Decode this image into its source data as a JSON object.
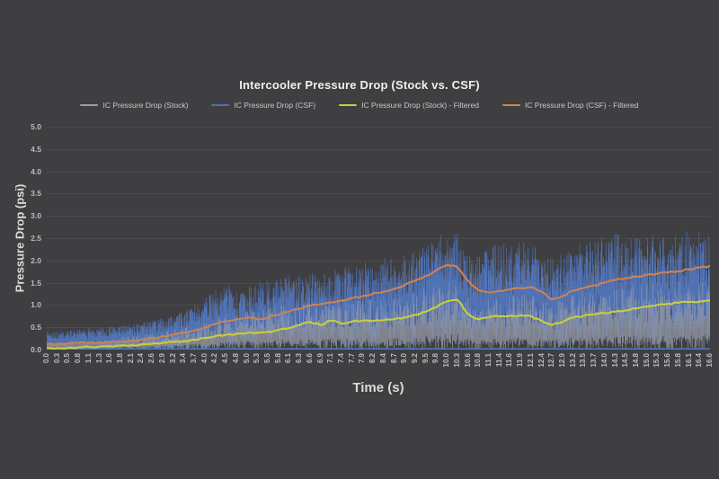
{
  "theme": {
    "background": "#3f3f41",
    "gridline": "#4c4d50",
    "axis_line": "#4a78c8",
    "tick_text": "#bbbcbe",
    "title_text": "#efefef",
    "axis_title_text": "#dcdcdc",
    "legend_text": "#c7c8ca"
  },
  "chart_data": {
    "type": "line",
    "title": "Intercooler Pressure Drop (Stock vs. CSF)",
    "xlabel": "Time (s)",
    "ylabel": "Pressure Drop (psi)",
    "ylim": [
      0,
      5
    ],
    "y_tick_step": 0.5,
    "grid": "horizontal",
    "legend_position": "top",
    "x_tick_rotation": 90,
    "noise_seed": 7,
    "y_ticks": [
      "0.0",
      "0.5",
      "1.0",
      "1.5",
      "2.0",
      "2.5",
      "3.0",
      "3.5",
      "4.0",
      "4.5",
      "5.0"
    ],
    "categories": [
      "0.0",
      "0.3",
      "0.5",
      "0.8",
      "1.1",
      "1.3",
      "1.6",
      "1.8",
      "2.1",
      "2.4",
      "2.6",
      "2.9",
      "3.2",
      "3.4",
      "3.7",
      "4.0",
      "4.2",
      "4.5",
      "4.8",
      "5.0",
      "5.3",
      "5.5",
      "5.8",
      "6.1",
      "6.3",
      "6.6",
      "6.9",
      "7.1",
      "7.4",
      "7.7",
      "7.9",
      "8.2",
      "8.4",
      "8.7",
      "9.0",
      "9.2",
      "9.5",
      "9.8",
      "10.0",
      "10.3",
      "10.6",
      "10.8",
      "11.1",
      "11.4",
      "11.6",
      "11.9",
      "12.1",
      "12.4",
      "12.7",
      "12.9",
      "13.2",
      "13.5",
      "13.7",
      "14.0",
      "14.3",
      "14.5",
      "14.8",
      "15.0",
      "15.3",
      "15.6",
      "15.8",
      "16.1",
      "16.4",
      "16.6"
    ],
    "series": [
      {
        "name": "IC Pressure Drop (Stock)",
        "kind": "raw-noise",
        "color": "#999da6",
        "envelope_top": [
          0.15,
          0.16,
          0.17,
          0.18,
          0.2,
          0.22,
          0.25,
          0.28,
          0.3,
          0.34,
          0.38,
          0.42,
          0.46,
          0.52,
          0.58,
          0.65,
          0.72,
          0.8,
          0.85,
          0.9,
          0.92,
          0.95,
          1.0,
          1.02,
          1.05,
          1.08,
          1.05,
          1.1,
          1.08,
          1.12,
          1.15,
          1.15,
          1.18,
          1.2,
          1.25,
          1.32,
          1.4,
          1.5,
          1.6,
          1.55,
          1.2,
          1.1,
          1.2,
          1.25,
          1.28,
          1.3,
          1.28,
          1.18,
          1.05,
          1.15,
          1.25,
          1.3,
          1.35,
          1.38,
          1.42,
          1.45,
          1.48,
          1.5,
          1.52,
          1.5,
          1.52,
          1.55,
          1.52,
          1.5
        ],
        "noise": {
          "samples": 1500,
          "high_frac": [
            0.4,
            1.0
          ],
          "low_frac": [
            0.0,
            0.22
          ],
          "alpha": 0.72,
          "line_width": 0.9
        }
      },
      {
        "name": "IC Pressure Drop (CSF)",
        "kind": "raw-noise",
        "color": "#4a6fb8",
        "highlight": "#6b8cce",
        "envelope_top": [
          0.4,
          0.42,
          0.45,
          0.45,
          0.48,
          0.5,
          0.52,
          0.55,
          0.58,
          0.62,
          0.66,
          0.72,
          0.8,
          0.9,
          1.0,
          1.15,
          1.35,
          1.45,
          1.4,
          1.45,
          1.5,
          1.55,
          1.6,
          1.65,
          1.7,
          1.75,
          1.7,
          1.8,
          1.85,
          1.9,
          1.95,
          2.0,
          2.05,
          2.1,
          2.2,
          2.3,
          2.4,
          2.55,
          2.75,
          2.6,
          2.2,
          2.1,
          2.3,
          2.4,
          2.45,
          2.45,
          2.4,
          2.25,
          2.15,
          2.35,
          2.45,
          2.5,
          2.55,
          2.55,
          2.6,
          2.6,
          2.65,
          2.6,
          2.65,
          2.6,
          2.65,
          2.7,
          2.65,
          2.6
        ],
        "noise": {
          "samples": 1500,
          "high_frac": [
            0.5,
            1.0
          ],
          "low_frac": [
            0.04,
            0.35
          ],
          "alpha": 0.88,
          "line_width": 0.9,
          "overlay": {
            "segments": 480,
            "low_frac": [
              0.18,
              0.5
            ],
            "high_frac": [
              0.6,
              1.0
            ],
            "alpha": 0.5,
            "line_width": 0.8
          }
        }
      },
      {
        "name": "IC Pressure Drop (Stock) - Filtered",
        "kind": "filtered-line",
        "color": "#c9ce3e",
        "values": [
          0.03,
          0.03,
          0.04,
          0.05,
          0.06,
          0.07,
          0.08,
          0.09,
          0.1,
          0.12,
          0.13,
          0.15,
          0.17,
          0.19,
          0.22,
          0.26,
          0.3,
          0.33,
          0.35,
          0.37,
          0.38,
          0.4,
          0.44,
          0.48,
          0.55,
          0.62,
          0.55,
          0.65,
          0.58,
          0.63,
          0.65,
          0.64,
          0.66,
          0.68,
          0.72,
          0.78,
          0.85,
          0.95,
          1.08,
          1.12,
          0.8,
          0.68,
          0.72,
          0.75,
          0.76,
          0.77,
          0.75,
          0.65,
          0.55,
          0.62,
          0.72,
          0.76,
          0.79,
          0.82,
          0.85,
          0.88,
          0.92,
          0.96,
          1.0,
          1.03,
          1.05,
          1.07,
          1.08,
          1.1
        ]
      },
      {
        "name": "IC Pressure Drop (CSF) - Filtered",
        "kind": "filtered-line",
        "color": "#cd8254",
        "values": [
          0.12,
          0.13,
          0.14,
          0.15,
          0.15,
          0.16,
          0.17,
          0.18,
          0.2,
          0.23,
          0.26,
          0.3,
          0.34,
          0.38,
          0.43,
          0.5,
          0.57,
          0.63,
          0.68,
          0.71,
          0.68,
          0.72,
          0.78,
          0.85,
          0.92,
          0.98,
          1.02,
          1.06,
          1.1,
          1.15,
          1.2,
          1.26,
          1.3,
          1.36,
          1.45,
          1.55,
          1.65,
          1.78,
          1.9,
          1.85,
          1.55,
          1.33,
          1.28,
          1.32,
          1.35,
          1.38,
          1.4,
          1.3,
          1.12,
          1.2,
          1.32,
          1.38,
          1.44,
          1.5,
          1.56,
          1.6,
          1.64,
          1.68,
          1.7,
          1.73,
          1.76,
          1.8,
          1.84,
          1.88
        ]
      }
    ]
  }
}
